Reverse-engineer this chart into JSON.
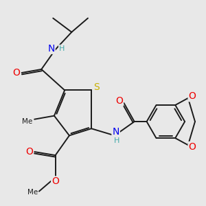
{
  "bg_color": "#e8e8e8",
  "bond_color": "#1a1a1a",
  "bw": 1.4,
  "atom_colors": {
    "S": "#c8b000",
    "N": "#0000ee",
    "O": "#ee0000",
    "H": "#44aaaa",
    "C": "#1a1a1a"
  },
  "figsize": [
    3.0,
    3.0
  ],
  "dpi": 100
}
